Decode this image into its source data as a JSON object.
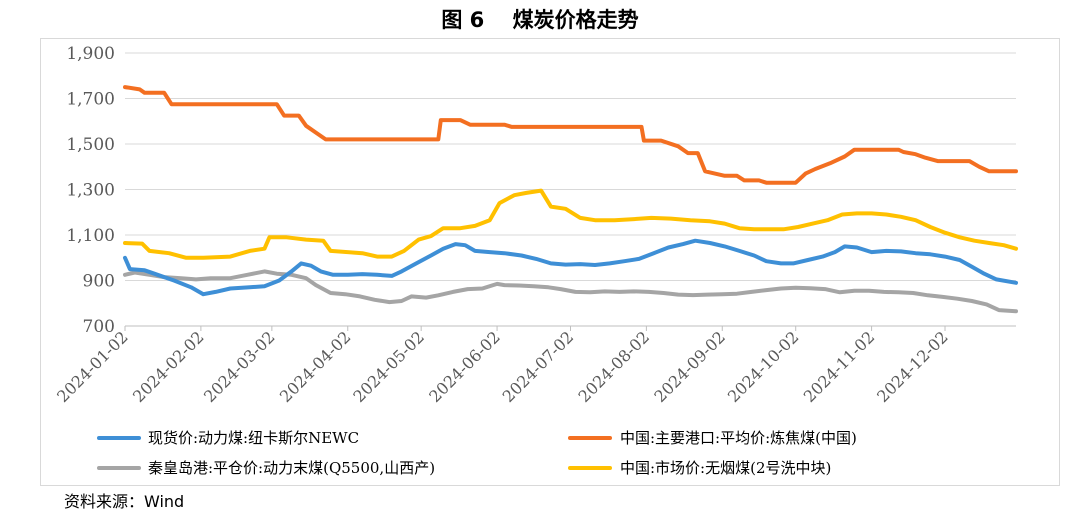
{
  "title": "图 6　 煤炭价格走势",
  "source": "资料来源：Wind",
  "chart_data": {
    "type": "line",
    "ylim": [
      700,
      1900
    ],
    "yticks": [
      "1,900",
      "1,700",
      "1,500",
      "1,300",
      "1,100",
      "900",
      "700"
    ],
    "ytick_values": [
      1900,
      1700,
      1500,
      1300,
      1100,
      900,
      700
    ],
    "xlim": [
      "2024-01-02",
      "2024-12-31"
    ],
    "xticks": [
      "2024-01-02",
      "2024-02-02",
      "2024-03-02",
      "2024-04-02",
      "2024-05-02",
      "2024-06-02",
      "2024-07-02",
      "2024-08-02",
      "2024-09-02",
      "2024-10-02",
      "2024-11-02",
      "2024-12-02"
    ],
    "grid": true,
    "legend": "bottom",
    "series": [
      {
        "name": "现货价:动力煤:纽卡斯尔NEWC",
        "color": "#3e8fd6",
        "points": [
          [
            "2024-01-02",
            1000
          ],
          [
            "2024-01-04",
            950
          ],
          [
            "2024-01-10",
            945
          ],
          [
            "2024-01-14",
            930
          ],
          [
            "2024-01-22",
            900
          ],
          [
            "2024-01-29",
            870
          ],
          [
            "2024-02-03",
            840
          ],
          [
            "2024-02-08",
            850
          ],
          [
            "2024-02-14",
            865
          ],
          [
            "2024-02-22",
            870
          ],
          [
            "2024-02-28",
            875
          ],
          [
            "2024-03-05",
            900
          ],
          [
            "2024-03-10",
            940
          ],
          [
            "2024-03-14",
            975
          ],
          [
            "2024-03-18",
            965
          ],
          [
            "2024-03-22",
            940
          ],
          [
            "2024-03-27",
            925
          ],
          [
            "2024-04-02",
            925
          ],
          [
            "2024-04-08",
            928
          ],
          [
            "2024-04-14",
            925
          ],
          [
            "2024-04-20",
            920
          ],
          [
            "2024-04-24",
            940
          ],
          [
            "2024-04-30",
            975
          ],
          [
            "2024-05-06",
            1010
          ],
          [
            "2024-05-11",
            1040
          ],
          [
            "2024-05-16",
            1060
          ],
          [
            "2024-05-20",
            1055
          ],
          [
            "2024-05-24",
            1030
          ],
          [
            "2024-05-30",
            1025
          ],
          [
            "2024-06-05",
            1020
          ],
          [
            "2024-06-12",
            1010
          ],
          [
            "2024-06-18",
            995
          ],
          [
            "2024-06-24",
            975
          ],
          [
            "2024-06-30",
            970
          ],
          [
            "2024-07-06",
            972
          ],
          [
            "2024-07-12",
            968
          ],
          [
            "2024-07-18",
            975
          ],
          [
            "2024-07-24",
            985
          ],
          [
            "2024-07-30",
            995
          ],
          [
            "2024-08-05",
            1020
          ],
          [
            "2024-08-11",
            1045
          ],
          [
            "2024-08-17",
            1060
          ],
          [
            "2024-08-22",
            1075
          ],
          [
            "2024-08-28",
            1065
          ],
          [
            "2024-09-03",
            1050
          ],
          [
            "2024-09-09",
            1030
          ],
          [
            "2024-09-15",
            1010
          ],
          [
            "2024-09-20",
            985
          ],
          [
            "2024-09-26",
            975
          ],
          [
            "2024-10-01",
            975
          ],
          [
            "2024-10-07",
            990
          ],
          [
            "2024-10-13",
            1005
          ],
          [
            "2024-10-18",
            1025
          ],
          [
            "2024-10-22",
            1050
          ],
          [
            "2024-10-27",
            1045
          ],
          [
            "2024-11-02",
            1025
          ],
          [
            "2024-11-08",
            1030
          ],
          [
            "2024-11-14",
            1028
          ],
          [
            "2024-11-20",
            1020
          ],
          [
            "2024-11-26",
            1015
          ],
          [
            "2024-12-02",
            1005
          ],
          [
            "2024-12-08",
            990
          ],
          [
            "2024-12-13",
            960
          ],
          [
            "2024-12-18",
            930
          ],
          [
            "2024-12-23",
            905
          ],
          [
            "2024-12-31",
            890
          ]
        ]
      },
      {
        "name": "中国:主要港口:平均价:炼焦煤(中国)",
        "color": "#f36f21",
        "points": [
          [
            "2024-01-02",
            1750
          ],
          [
            "2024-01-08",
            1740
          ],
          [
            "2024-01-10",
            1725
          ],
          [
            "2024-01-18",
            1725
          ],
          [
            "2024-01-21",
            1675
          ],
          [
            "2024-02-10",
            1675
          ],
          [
            "2024-03-04",
            1675
          ],
          [
            "2024-03-07",
            1625
          ],
          [
            "2024-03-13",
            1625
          ],
          [
            "2024-03-16",
            1580
          ],
          [
            "2024-03-20",
            1550
          ],
          [
            "2024-03-24",
            1520
          ],
          [
            "2024-04-10",
            1520
          ],
          [
            "2024-05-05",
            1520
          ],
          [
            "2024-05-09",
            1520
          ],
          [
            "2024-05-10",
            1605
          ],
          [
            "2024-05-18",
            1605
          ],
          [
            "2024-05-22",
            1585
          ],
          [
            "2024-06-05",
            1585
          ],
          [
            "2024-06-08",
            1575
          ],
          [
            "2024-07-01",
            1575
          ],
          [
            "2024-07-31",
            1575
          ],
          [
            "2024-08-01",
            1515
          ],
          [
            "2024-08-08",
            1515
          ],
          [
            "2024-08-15",
            1490
          ],
          [
            "2024-08-19",
            1460
          ],
          [
            "2024-08-23",
            1460
          ],
          [
            "2024-08-26",
            1380
          ],
          [
            "2024-09-03",
            1360
          ],
          [
            "2024-09-08",
            1360
          ],
          [
            "2024-09-11",
            1340
          ],
          [
            "2024-09-17",
            1340
          ],
          [
            "2024-09-20",
            1330
          ],
          [
            "2024-09-30",
            1330
          ],
          [
            "2024-10-02",
            1330
          ],
          [
            "2024-10-06",
            1370
          ],
          [
            "2024-10-10",
            1390
          ],
          [
            "2024-10-16",
            1415
          ],
          [
            "2024-10-22",
            1445
          ],
          [
            "2024-10-26",
            1475
          ],
          [
            "2024-11-08",
            1475
          ],
          [
            "2024-11-13",
            1475
          ],
          [
            "2024-11-15",
            1465
          ],
          [
            "2024-11-20",
            1455
          ],
          [
            "2024-11-24",
            1440
          ],
          [
            "2024-11-29",
            1425
          ],
          [
            "2024-12-12",
            1425
          ],
          [
            "2024-12-16",
            1400
          ],
          [
            "2024-12-20",
            1380
          ],
          [
            "2024-12-31",
            1380
          ]
        ]
      },
      {
        "name": "秦皇岛港:平仓价:动力末煤(Q5500,山西产)",
        "color": "#a5a5a5",
        "points": [
          [
            "2024-01-02",
            925
          ],
          [
            "2024-01-06",
            935
          ],
          [
            "2024-01-12",
            925
          ],
          [
            "2024-01-18",
            915
          ],
          [
            "2024-01-25",
            910
          ],
          [
            "2024-01-31",
            905
          ],
          [
            "2024-02-06",
            910
          ],
          [
            "2024-02-14",
            910
          ],
          [
            "2024-02-21",
            925
          ],
          [
            "2024-02-28",
            940
          ],
          [
            "2024-03-04",
            930
          ],
          [
            "2024-03-10",
            925
          ],
          [
            "2024-03-16",
            910
          ],
          [
            "2024-03-20",
            880
          ],
          [
            "2024-03-26",
            845
          ],
          [
            "2024-04-01",
            840
          ],
          [
            "2024-04-07",
            830
          ],
          [
            "2024-04-13",
            815
          ],
          [
            "2024-04-19",
            805
          ],
          [
            "2024-04-24",
            810
          ],
          [
            "2024-04-28",
            830
          ],
          [
            "2024-05-04",
            825
          ],
          [
            "2024-05-09",
            835
          ],
          [
            "2024-05-15",
            850
          ],
          [
            "2024-05-21",
            862
          ],
          [
            "2024-05-27",
            865
          ],
          [
            "2024-06-02",
            885
          ],
          [
            "2024-06-05",
            880
          ],
          [
            "2024-06-11",
            878
          ],
          [
            "2024-06-17",
            875
          ],
          [
            "2024-06-23",
            870
          ],
          [
            "2024-06-28",
            862
          ],
          [
            "2024-07-04",
            850
          ],
          [
            "2024-07-10",
            848
          ],
          [
            "2024-07-16",
            852
          ],
          [
            "2024-07-22",
            850
          ],
          [
            "2024-07-28",
            852
          ],
          [
            "2024-08-03",
            850
          ],
          [
            "2024-08-09",
            845
          ],
          [
            "2024-08-15",
            838
          ],
          [
            "2024-08-21",
            836
          ],
          [
            "2024-08-27",
            838
          ],
          [
            "2024-09-02",
            840
          ],
          [
            "2024-09-08",
            842
          ],
          [
            "2024-09-14",
            850
          ],
          [
            "2024-09-20",
            858
          ],
          [
            "2024-09-26",
            865
          ],
          [
            "2024-10-02",
            868
          ],
          [
            "2024-10-08",
            866
          ],
          [
            "2024-10-14",
            862
          ],
          [
            "2024-10-20",
            848
          ],
          [
            "2024-10-26",
            855
          ],
          [
            "2024-11-01",
            855
          ],
          [
            "2024-11-07",
            850
          ],
          [
            "2024-11-13",
            848
          ],
          [
            "2024-11-19",
            845
          ],
          [
            "2024-11-25",
            835
          ],
          [
            "2024-12-01",
            828
          ],
          [
            "2024-12-07",
            820
          ],
          [
            "2024-12-13",
            810
          ],
          [
            "2024-12-19",
            795
          ],
          [
            "2024-12-24",
            770
          ],
          [
            "2024-12-31",
            765
          ]
        ]
      },
      {
        "name": "中国:市场价:无烟煤(2号洗中块)",
        "color": "#ffc000",
        "points": [
          [
            "2024-01-02",
            1065
          ],
          [
            "2024-01-09",
            1062
          ],
          [
            "2024-01-12",
            1030
          ],
          [
            "2024-01-20",
            1020
          ],
          [
            "2024-01-27",
            1000
          ],
          [
            "2024-02-03",
            1000
          ],
          [
            "2024-02-14",
            1005
          ],
          [
            "2024-02-22",
            1030
          ],
          [
            "2024-02-28",
            1040
          ],
          [
            "2024-03-01",
            1090
          ],
          [
            "2024-03-08",
            1090
          ],
          [
            "2024-03-16",
            1080
          ],
          [
            "2024-03-23",
            1075
          ],
          [
            "2024-03-26",
            1030
          ],
          [
            "2024-04-08",
            1020
          ],
          [
            "2024-04-14",
            1005
          ],
          [
            "2024-04-20",
            1005
          ],
          [
            "2024-04-25",
            1030
          ],
          [
            "2024-05-01",
            1080
          ],
          [
            "2024-05-06",
            1095
          ],
          [
            "2024-05-11",
            1130
          ],
          [
            "2024-05-18",
            1130
          ],
          [
            "2024-05-24",
            1140
          ],
          [
            "2024-05-30",
            1165
          ],
          [
            "2024-06-03",
            1240
          ],
          [
            "2024-06-09",
            1275
          ],
          [
            "2024-06-14",
            1285
          ],
          [
            "2024-06-20",
            1295
          ],
          [
            "2024-06-24",
            1225
          ],
          [
            "2024-06-30",
            1215
          ],
          [
            "2024-07-06",
            1175
          ],
          [
            "2024-07-12",
            1165
          ],
          [
            "2024-07-20",
            1165
          ],
          [
            "2024-07-28",
            1170
          ],
          [
            "2024-08-04",
            1175
          ],
          [
            "2024-08-12",
            1172
          ],
          [
            "2024-08-20",
            1165
          ],
          [
            "2024-08-28",
            1160
          ],
          [
            "2024-09-03",
            1150
          ],
          [
            "2024-09-09",
            1130
          ],
          [
            "2024-09-15",
            1125
          ],
          [
            "2024-09-21",
            1125
          ],
          [
            "2024-09-27",
            1125
          ],
          [
            "2024-10-03",
            1135
          ],
          [
            "2024-10-09",
            1150
          ],
          [
            "2024-10-15",
            1165
          ],
          [
            "2024-10-21",
            1190
          ],
          [
            "2024-10-27",
            1195
          ],
          [
            "2024-11-02",
            1195
          ],
          [
            "2024-11-08",
            1190
          ],
          [
            "2024-11-14",
            1180
          ],
          [
            "2024-11-20",
            1165
          ],
          [
            "2024-11-26",
            1135
          ],
          [
            "2024-12-02",
            1110
          ],
          [
            "2024-12-08",
            1090
          ],
          [
            "2024-12-14",
            1075
          ],
          [
            "2024-12-20",
            1065
          ],
          [
            "2024-12-26",
            1055
          ],
          [
            "2024-12-31",
            1040
          ]
        ]
      }
    ]
  }
}
